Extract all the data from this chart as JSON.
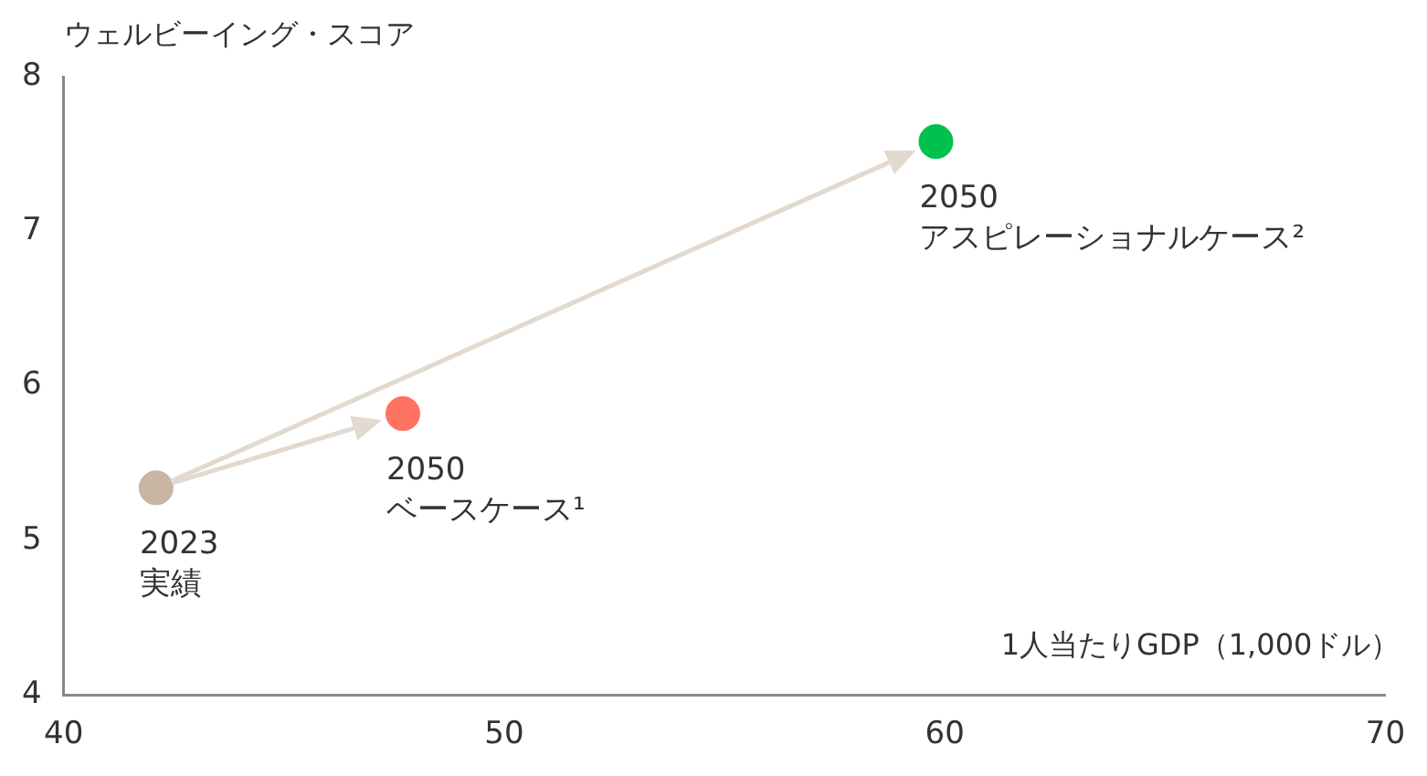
{
  "chart_data": {
    "type": "scatter",
    "ylabel": "ウェルビーイング・スコア",
    "xlabel": "1人当たりGDP（1,000ドル）",
    "x": [
      42.1,
      47.7,
      59.8
    ],
    "values": [
      5.34,
      5.82,
      7.58
    ],
    "colors": [
      "#c8b5a2",
      "#ff7361",
      "#00c150"
    ],
    "xlim": [
      40,
      70
    ],
    "xticks": [
      40,
      50,
      60,
      70
    ],
    "ylim": [
      4,
      8
    ],
    "yticks": [
      4,
      5,
      6,
      7,
      8
    ],
    "grid": false,
    "legend": false,
    "marker": "circle",
    "annotations": [
      {
        "text": "2023\n実績",
        "x": 42.1,
        "y": 5.34
      },
      {
        "text": "2050\nベースケース¹",
        "x": 47.7,
        "y": 5.82
      },
      {
        "text": "2050\nアスピレーショナルケース²",
        "x": 59.8,
        "y": 7.58
      }
    ]
  }
}
